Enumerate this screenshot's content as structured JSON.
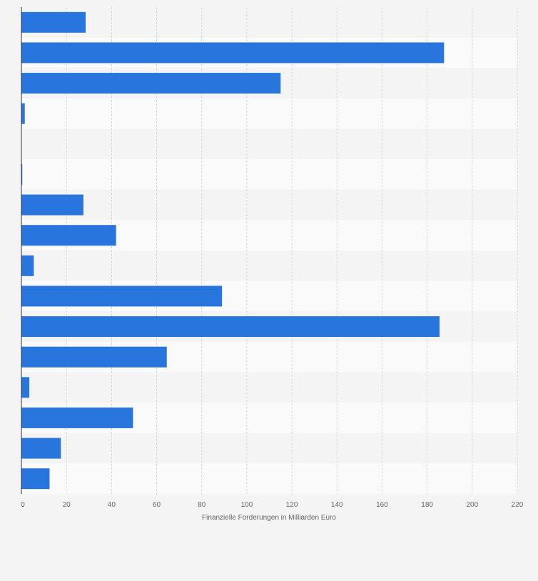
{
  "chart_data": {
    "type": "bar",
    "orientation": "horizontal",
    "categories": [
      "",
      "",
      "",
      "",
      "",
      "",
      "",
      "",
      "",
      "",
      "",
      "",
      "",
      "",
      "",
      ""
    ],
    "values": [
      28.5,
      187.5,
      115,
      1.5,
      0,
      0.4,
      27.5,
      42,
      5.5,
      89,
      185.5,
      64.5,
      3.5,
      49.5,
      17.5,
      12.5
    ],
    "xlim": [
      0,
      220
    ],
    "xticks": [
      "0",
      "20",
      "40",
      "60",
      "80",
      "100",
      "120",
      "140",
      "160",
      "180",
      "200",
      "220"
    ],
    "xlabel": "Finanzielle Forderungen in Milliarden Euro",
    "grid": true,
    "bar_color": "#2876dd",
    "band_colors": [
      "#f4f4f4",
      "#fafafa"
    ],
    "gridline_color": "#d6d6d6"
  }
}
